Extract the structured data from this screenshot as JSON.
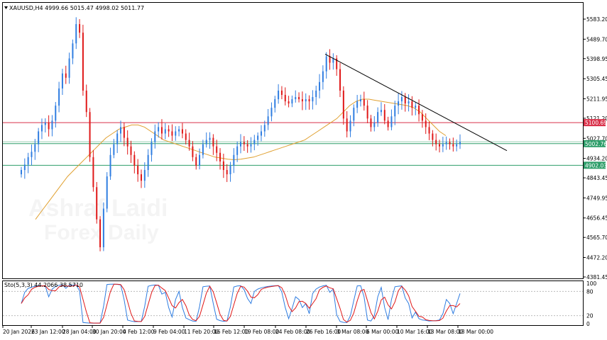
{
  "chart_data": {
    "type": "candlestick",
    "title": "XAUUSD,H4  4999.66 5015.47 4998.02 5011.77",
    "symbol": "XAUUSD",
    "timeframe": "H4",
    "ohlc_readout": {
      "open": 4999.66,
      "high": 5015.47,
      "low": 4998.02,
      "close": 5011.77
    },
    "price_ticks": [
      5583.2,
      5489.7,
      5398.95,
      5305.45,
      5211.95,
      5121.2,
      5027.7,
      4934.2,
      4843.45,
      4749.95,
      4656.45,
      4565.7,
      4472.2,
      4381.45
    ],
    "price_ylim": [
      4381.45,
      5583.2
    ],
    "time_labels": [
      "20 Jan 2026",
      "23 Jan 12:00",
      "28 Jan 04:00",
      "30 Jan 20:00",
      "4 Feb 12:00",
      "9 Feb 04:00",
      "11 Feb 20:00",
      "16 Feb 12:00",
      "19 Feb 08:00",
      "24 Feb 08:00",
      "26 Feb 16:00",
      "3 Mar 08:00",
      "6 Mar 00:00",
      "10 Mar 16:00",
      "13 Mar 08:00",
      "18 Mar 00:00"
    ],
    "horizontal_levels": [
      {
        "label": "5100.69",
        "value": 5100.69,
        "color": "#d9314a"
      },
      {
        "label": "5002.76",
        "value": 5002.76,
        "color": "#2e9e6a"
      },
      {
        "label": "4902.03",
        "value": 4902.03,
        "color": "#2e9e6a"
      }
    ],
    "trendline": {
      "from": {
        "time": "26 Feb 16:00",
        "price": 5420
      },
      "to": {
        "time": "18 Mar 08:00",
        "price": 4970
      },
      "color": "#000000"
    },
    "moving_average_color": "#e0a030",
    "bull_color": "#2f7de1",
    "bear_color": "#e01818",
    "close_series": [
      4880,
      4905,
      4940,
      4965,
      5000,
      5060,
      5090,
      5100,
      5070,
      5110,
      5180,
      5260,
      5330,
      5310,
      5400,
      5470,
      5560,
      5520,
      5250,
      5150,
      4940,
      4800,
      4650,
      4520,
      4700,
      4850,
      4950,
      5000,
      5050,
      5080,
      5030,
      4990,
      4950,
      4900,
      4860,
      4830,
      4880,
      4950,
      5010,
      5060,
      5080,
      5050,
      5070,
      5060,
      5040,
      5060,
      5070,
      5050,
      5020,
      4990,
      4940,
      4900,
      4950,
      5000,
      5020,
      5030,
      4990,
      4960,
      4920,
      4880,
      4860,
      4900,
      4950,
      4990,
      5010,
      5000,
      4990,
      5000,
      5020,
      5040,
      5060,
      5090,
      5130,
      5170,
      5210,
      5250,
      5230,
      5200,
      5190,
      5210,
      5220,
      5210,
      5200,
      5210,
      5200,
      5220,
      5250,
      5290,
      5340,
      5410,
      5380,
      5400,
      5350,
      5250,
      5120,
      5060,
      5110,
      5170,
      5200,
      5210,
      5180,
      5120,
      5080,
      5100,
      5150,
      5160,
      5110,
      5080,
      5130,
      5180,
      5200,
      5220,
      5190,
      5200,
      5170,
      5180,
      5140,
      5110,
      5080,
      5050,
      5020,
      5000,
      4990,
      5000,
      5010,
      5000,
      4990,
      5000,
      5010
    ],
    "ma_series": [
      4650,
      4690,
      4730,
      4770,
      4810,
      4850,
      4880,
      4910,
      4940,
      4970,
      5000,
      5030,
      5050,
      5070,
      5080,
      5090,
      5090,
      5080,
      5060,
      5040,
      5020,
      5010,
      5000,
      4990,
      4980,
      4970,
      4960,
      4950,
      4940,
      4935,
      4930,
      4928,
      4930,
      4935,
      4940,
      4950,
      4960,
      4970,
      4980,
      4990,
      5000,
      5010,
      5020,
      5040,
      5060,
      5080,
      5100,
      5120,
      5150,
      5180,
      5200,
      5210,
      5210,
      5205,
      5200,
      5195,
      5190,
      5185,
      5180,
      5170,
      5150,
      5120,
      5090,
      5060,
      5040
    ],
    "stochastic": {
      "label": "Sto(5,3,3) 44.2066 38.5710",
      "ticks": [
        100,
        80,
        20,
        0
      ],
      "main_color": "#2f7de1",
      "signal_color": "#e01818"
    }
  },
  "watermark": {
    "line1": "Ashraf Laidi",
    "line2": "Forex Daily"
  }
}
